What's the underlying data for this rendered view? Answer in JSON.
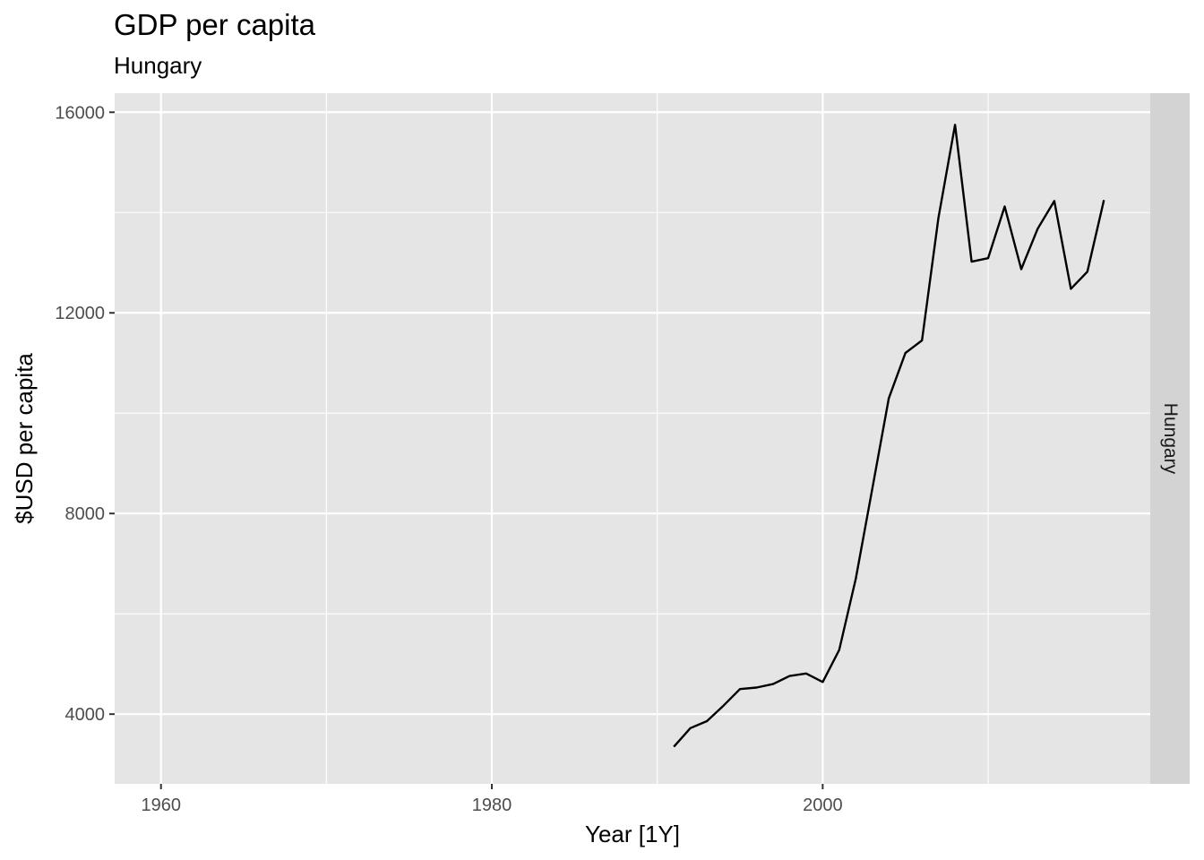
{
  "chart_data": {
    "type": "line",
    "title": "GDP per capita",
    "subtitle": "Hungary",
    "xlabel": "Year [1Y]",
    "ylabel": "$USD per capita",
    "facet_label": "Hungary",
    "xlim": [
      1957.2,
      2019.8
    ],
    "ylim": [
      2610,
      16380
    ],
    "x_ticks": [
      1960,
      1980,
      2000
    ],
    "x_tick_labels": [
      "1960",
      "1980",
      "2000"
    ],
    "x_minor_ticks": [
      1970,
      1990,
      2010
    ],
    "y_ticks": [
      4000,
      8000,
      12000,
      16000
    ],
    "y_tick_labels": [
      "4000",
      "8000",
      "12000",
      "16000"
    ],
    "y_minor_ticks": [
      6000,
      10000,
      14000
    ],
    "grid": true,
    "colors": {
      "panel": "#e5e5e5",
      "grid": "#ffffff",
      "strip": "#d3d3d3",
      "line": "#000000"
    },
    "series": [
      {
        "x": [
          1991,
          1992,
          1993,
          1994,
          1995,
          1996,
          1997,
          1998,
          1999,
          2000,
          2001,
          2002,
          2003,
          2004,
          2005,
          2006,
          2007,
          2008,
          2009,
          2010,
          2011,
          2012,
          2013,
          2014,
          2015,
          2016,
          2017
        ],
        "values": [
          3350,
          3720,
          3860,
          4170,
          4500,
          4530,
          4600,
          4760,
          4810,
          4640,
          5280,
          6700,
          8500,
          10300,
          11200,
          11450,
          13900,
          15750,
          13020,
          13090,
          14120,
          12870,
          13680,
          14230,
          12480,
          12820,
          14250
        ]
      }
    ]
  }
}
